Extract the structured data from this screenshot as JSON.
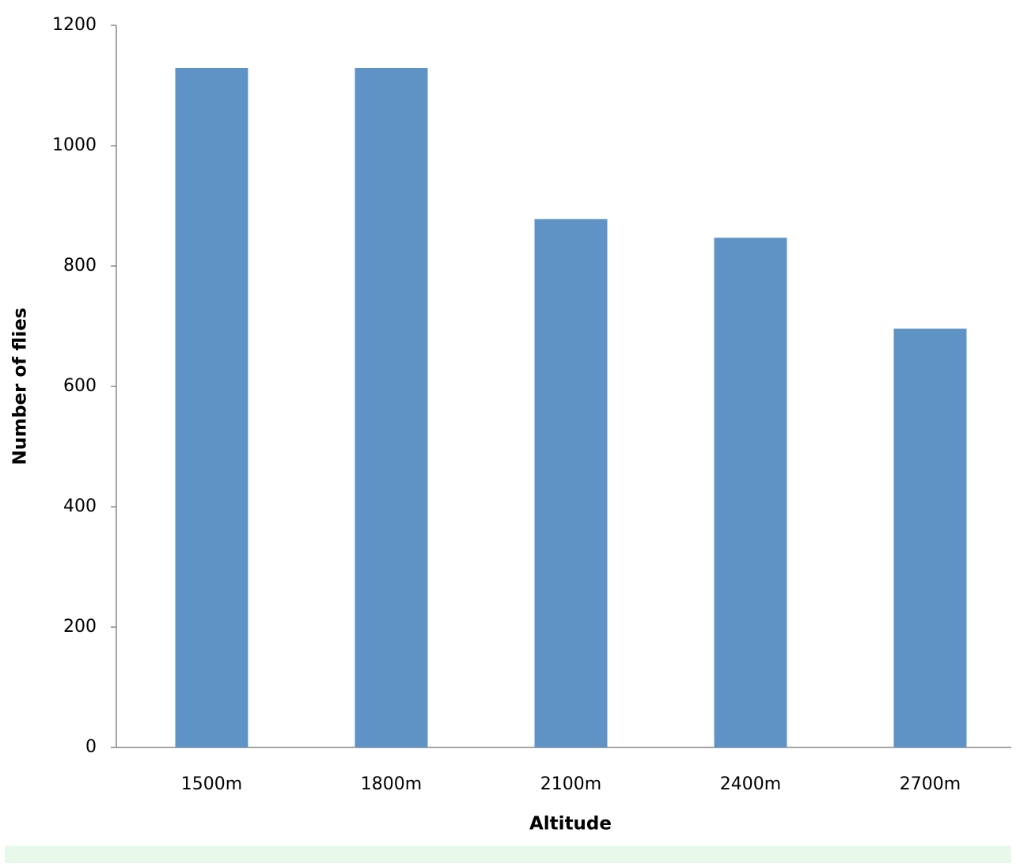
{
  "chart_data": {
    "type": "bar",
    "x_label": "Altitude",
    "y_label": "Number of flies",
    "categories": [
      "1500m",
      "1800m",
      "2100m",
      "2400m",
      "2700m"
    ],
    "values": [
      1129,
      1129,
      878,
      847,
      696
    ],
    "color": "#5f93c6",
    "ylim": [
      0,
      1200
    ],
    "yticks": [
      0,
      200,
      400,
      600,
      800,
      1000,
      1200
    ],
    "grid": false
  }
}
